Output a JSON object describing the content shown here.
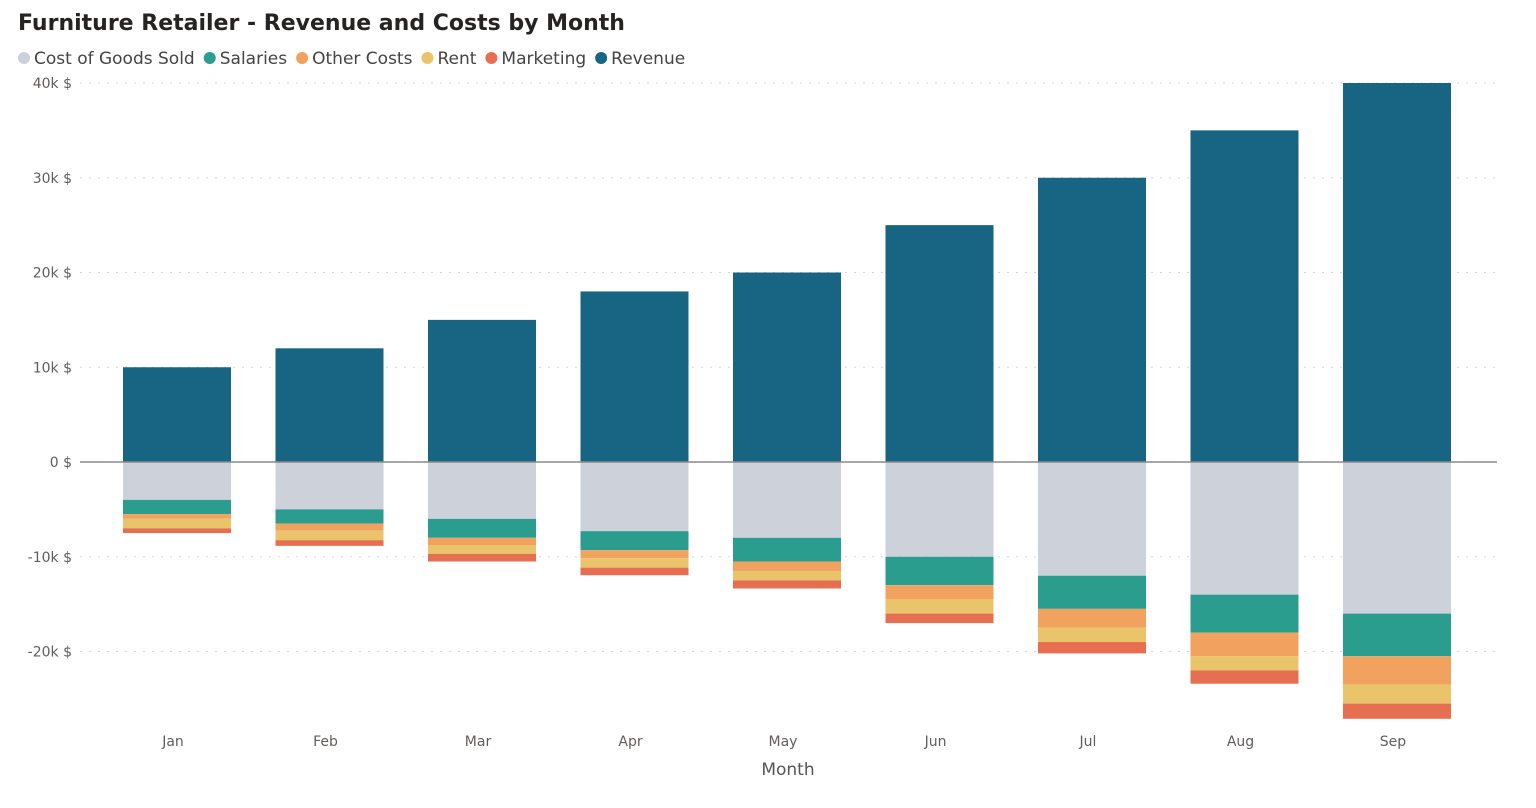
{
  "chart_data": {
    "type": "bar",
    "stacked": true,
    "title": "Furniture Retailer - Revenue and Costs by Month",
    "xlabel": "Month",
    "ylabel": "",
    "categories": [
      "Jan",
      "Feb",
      "Mar",
      "Apr",
      "May",
      "Jun",
      "Jul",
      "Aug",
      "Sep"
    ],
    "ylim": [
      -27500,
      40000
    ],
    "yticks": [
      -20000,
      -10000,
      0,
      10000,
      20000,
      30000,
      40000
    ],
    "ytick_labels": [
      "-20k $",
      "-10k $",
      "0 $",
      "10k $",
      "20k $",
      "30k $",
      "40k $"
    ],
    "grid": true,
    "legend_position": "top-left",
    "series": [
      {
        "name": "Cost of Goods Sold",
        "color": "#CCD1DA",
        "values": [
          -4000,
          -5000,
          -6000,
          -7300,
          -8000,
          -10000,
          -12000,
          -14000,
          -16000
        ]
      },
      {
        "name": "Salaries",
        "color": "#2A9D8F",
        "values": [
          -1500,
          -1500,
          -2000,
          -2000,
          -2500,
          -3000,
          -3500,
          -4000,
          -4500
        ]
      },
      {
        "name": "Other Costs",
        "color": "#F2A25F",
        "values": [
          -500,
          -750,
          -800,
          -850,
          -1000,
          -1500,
          -2000,
          -2500,
          -3000
        ]
      },
      {
        "name": "Rent",
        "color": "#E9C46A",
        "values": [
          -1000,
          -1000,
          -900,
          -1000,
          -1000,
          -1500,
          -1500,
          -1500,
          -2000
        ]
      },
      {
        "name": "Marketing",
        "color": "#E76F51",
        "values": [
          -500,
          -600,
          -800,
          -800,
          -850,
          -1000,
          -1200,
          -1400,
          -1600
        ]
      },
      {
        "name": "Revenue",
        "color": "#186483",
        "values": [
          10000,
          12000,
          15000,
          18000,
          20000,
          25000,
          30000,
          35000,
          40000
        ]
      }
    ]
  }
}
